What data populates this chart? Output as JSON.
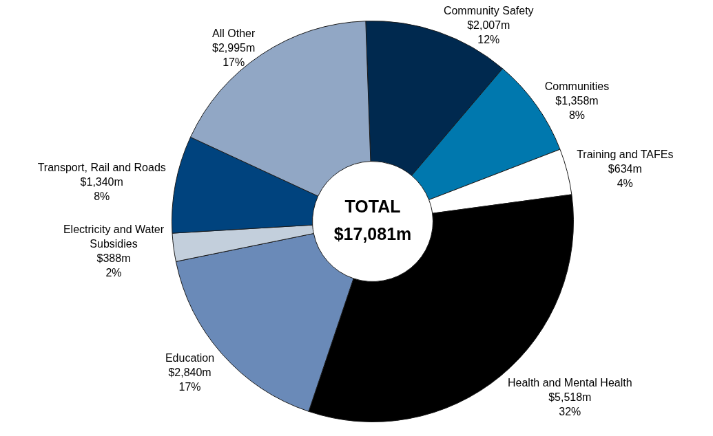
{
  "chart_data": {
    "type": "donut",
    "categories": [
      "Community Safety",
      "Communities",
      "Training and TAFEs",
      "Health and Mental Health",
      "Education",
      "Electricity and Water Subsidies",
      "Transport, Rail and Roads",
      "All Other"
    ],
    "values": [
      2007,
      1358,
      634,
      5518,
      2840,
      388,
      1340,
      2995
    ],
    "colors": [
      "#00294f",
      "#0078ae",
      "#ffffff",
      "#000000",
      "#6a8ab8",
      "#c3cfdc",
      "#00437e",
      "#91a7c5"
    ],
    "value_labels": [
      "$2,007m",
      "$1,358m",
      "$634m",
      "$5,518m",
      "$2,840m",
      "$388m",
      "$1,340m",
      "$2,995m"
    ],
    "annotations": [
      "TOTAL",
      "$17,081m",
      {
        "text": "12%",
        "x": "Community Safety"
      },
      {
        "text": "8%",
        "x": "Communities"
      },
      {
        "text": "4%",
        "x": "Training and TAFEs"
      },
      {
        "text": "32%",
        "x": "Health and Mental Health"
      },
      {
        "text": "17%",
        "x": "Education"
      },
      {
        "text": "2%",
        "x": "Electricity and Water Subsidies"
      },
      {
        "text": "8%",
        "x": "Transport, Rail and Roads"
      },
      {
        "text": "17%",
        "x": "All Other"
      }
    ],
    "legend": false
  }
}
